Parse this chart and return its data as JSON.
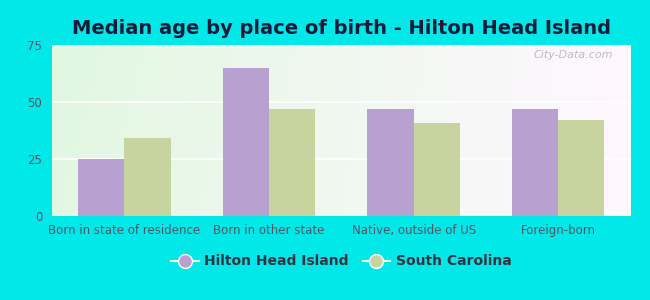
{
  "title": "Median age by place of birth - Hilton Head Island",
  "categories": [
    "Born in state of residence",
    "Born in other state",
    "Native, outside of US",
    "Foreign-born"
  ],
  "hilton_values": [
    25,
    65,
    47,
    47
  ],
  "sc_values": [
    34,
    47,
    41,
    42
  ],
  "hilton_color": "#b8a0d0",
  "sc_color": "#c8d4a0",
  "hilton_label": "Hilton Head Island",
  "sc_label": "South Carolina",
  "ylim": [
    0,
    75
  ],
  "yticks": [
    0,
    25,
    50,
    75
  ],
  "bg_outer": "#00e8e8",
  "watermark": "City-Data.com",
  "bar_width": 0.32,
  "title_fontsize": 14,
  "tick_fontsize": 8.5,
  "legend_fontsize": 10
}
